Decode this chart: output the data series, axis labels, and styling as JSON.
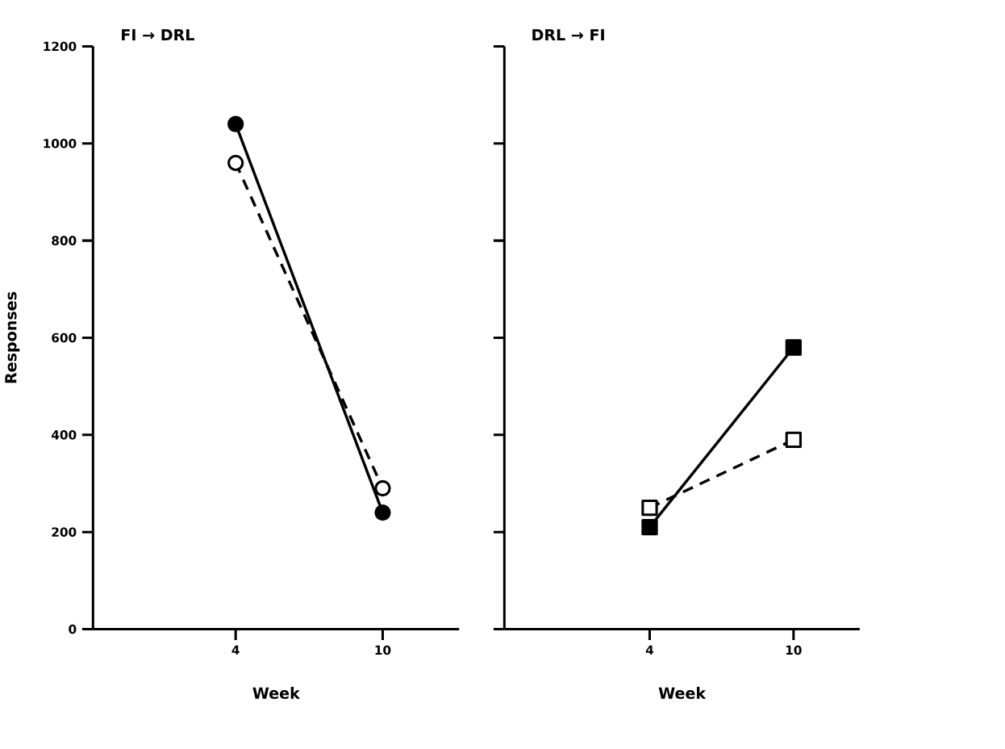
{
  "chart_data": [
    {
      "type": "line",
      "title": "FI → DRL",
      "xlabel": "Week",
      "ylabel": "Responses",
      "categories": [
        "4",
        "10"
      ],
      "ylim": [
        0,
        1200
      ],
      "yticks": [
        0,
        200,
        400,
        600,
        800,
        1000,
        1200
      ],
      "series": [
        {
          "color": "#000000",
          "values": [
            1040,
            240
          ],
          "marker": "circle",
          "line_style": "solid"
        },
        {
          "color": "#000000",
          "values": [
            960,
            290
          ],
          "marker": "circle",
          "line_style": "dashed"
        }
      ]
    },
    {
      "type": "line",
      "title": "DRL → FI",
      "xlabel": "Week",
      "categories": [
        "4",
        "10"
      ],
      "ylim": [
        0,
        1200
      ],
      "yticks": [
        0,
        200,
        400,
        600,
        800,
        1000,
        1200
      ],
      "tick_labels": "x",
      "series": [
        {
          "color": "#000000",
          "values": [
            210,
            580
          ],
          "marker": "square",
          "line_style": "solid"
        },
        {
          "color": "#000000",
          "values": [
            250,
            390
          ],
          "marker": "square",
          "line_style": "dashed"
        }
      ]
    }
  ]
}
